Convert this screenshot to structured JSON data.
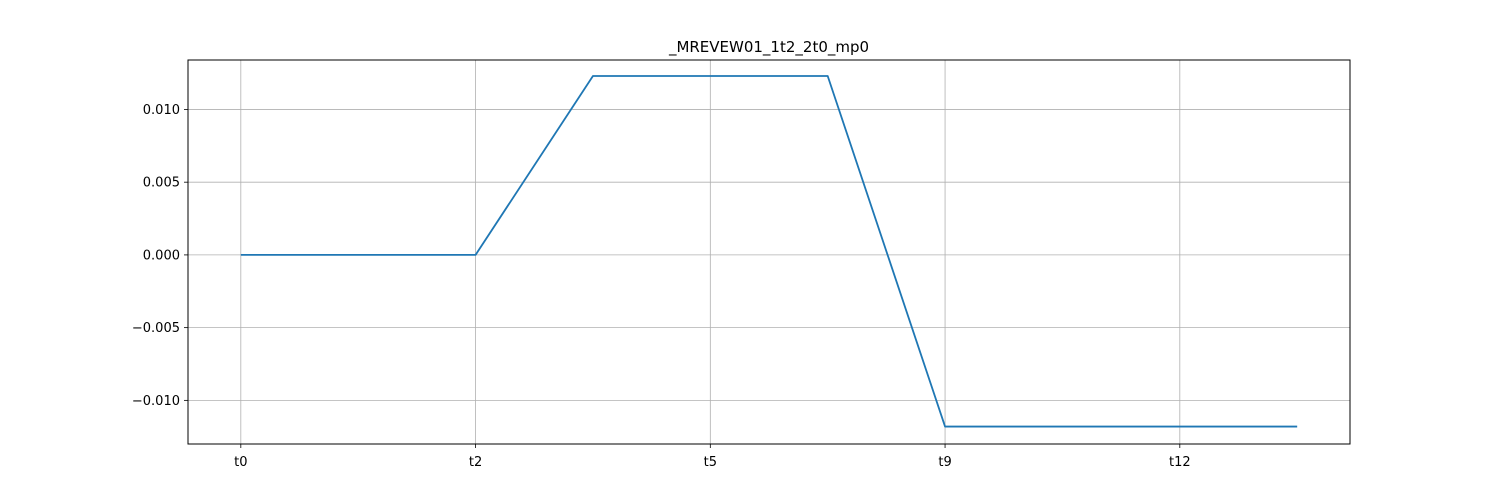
{
  "chart_data": {
    "type": "line",
    "title": "_MREVEW01_1t2_2t0_mp0",
    "xlabel": "",
    "ylabel": "",
    "x_tick_labels": [
      "t0",
      "t2",
      "t5",
      "t9",
      "t12"
    ],
    "x_tick_positions": [
      0,
      2,
      4,
      6,
      8
    ],
    "y_tick_labels": [
      "0.010",
      "0.005",
      "0.000",
      "−0.005",
      "−0.010"
    ],
    "y_tick_values": [
      0.01,
      0.005,
      0.0,
      -0.005,
      -0.01
    ],
    "xlim": [
      -0.45,
      9.45
    ],
    "ylim": [
      -0.013,
      0.0134
    ],
    "grid": true,
    "series": [
      {
        "x": [
          0,
          1,
          2,
          3,
          4,
          5,
          6,
          7,
          8,
          9
        ],
        "values": [
          0.0,
          0.0,
          0.0,
          0.0123,
          0.0123,
          0.0123,
          -0.0118,
          -0.0118,
          -0.0118,
          -0.0118
        ],
        "color": "#1f77b4"
      }
    ]
  }
}
